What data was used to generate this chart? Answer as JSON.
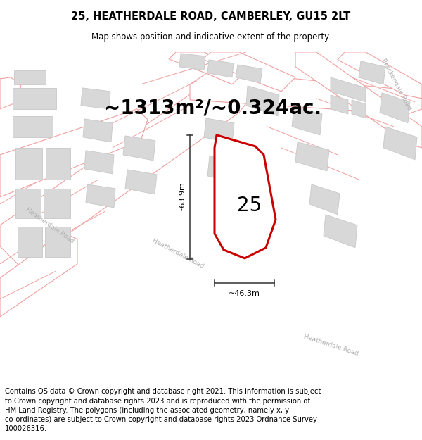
{
  "title": "25, HEATHERDALE ROAD, CAMBERLEY, GU15 2LT",
  "subtitle": "Map shows position and indicative extent of the property.",
  "area_text": "~1313m²/~0.324ac.",
  "label_25": "25",
  "dim_height": "~63.9m",
  "dim_width": "~46.3m",
  "road_label_brackendale": "Brackendale Road",
  "road_label_heatherdale1": "Heatherdale Road",
  "road_label_heatherdale2": "Heatherdale Road",
  "road_label_heatherdale3": "Heatherdale Road",
  "footer_text": "Contains OS data © Crown copyright and database right 2021. This information is subject to Crown copyright and database rights 2023 and is reproduced with the permission of HM Land Registry. The polygons (including the associated geometry, namely x, y co-ordinates) are subject to Crown copyright and database rights 2023 Ordnance Survey 100026316.",
  "bg_color": "#ffffff",
  "map_bg": "#f9f9f9",
  "building_fill": "#d8d8d8",
  "building_edge": "#c8c8c8",
  "road_line_color": "#f0a0a0",
  "plot_line_color": "#cc0000",
  "dim_line_color": "#333333",
  "title_fontsize": 10.5,
  "subtitle_fontsize": 8.5,
  "area_fontsize": 20,
  "label_fontsize": 20,
  "dim_fontsize": 8,
  "footer_fontsize": 7.2,
  "road_label_fontsize": 6.5,
  "fig_width": 6.0,
  "fig_height": 6.25
}
